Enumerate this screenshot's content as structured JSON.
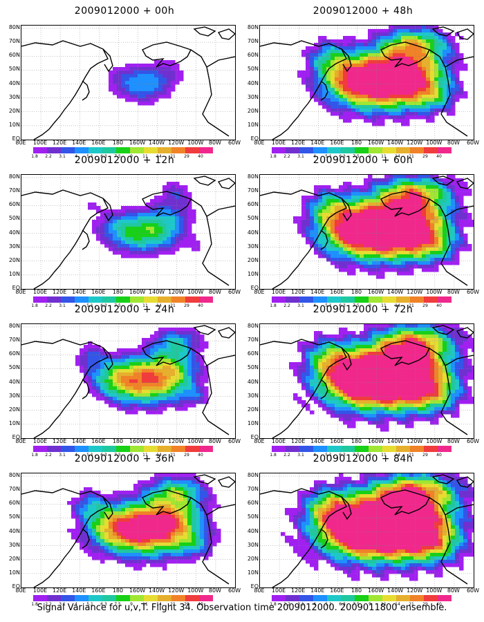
{
  "figure": {
    "footer": "Signal Variance for u,v,T. Flight 34. Observation time 2009012000. 2009011800 ensemble."
  },
  "lat_labels": [
    "80N",
    "70N",
    "60N",
    "50N",
    "40N",
    "30N",
    "20N",
    "10N",
    "EQ"
  ],
  "lon_labels": [
    "80E",
    "100E",
    "120E",
    "140E",
    "160E",
    "180",
    "160W",
    "140W",
    "120W",
    "100W",
    "80W",
    "60W"
  ],
  "colorbar": {
    "levels": [
      "1.8",
      "2.2",
      "3.1",
      "4",
      "5.1",
      "6.3",
      "7.5",
      "9",
      "11",
      "14",
      "21",
      "29",
      "40"
    ],
    "colors": [
      "#a020f0",
      "#7030d0",
      "#3355e8",
      "#1e90ff",
      "#1ec8c8",
      "#20c8a0",
      "#18d018",
      "#a0e632",
      "#e6dc32",
      "#e6af2d",
      "#f08228",
      "#f03c3c",
      "#f0288c"
    ]
  },
  "panels": [
    {
      "title": "2009012000 + 00h",
      "intensity": 0.15,
      "ext": 0.2
    },
    {
      "title": "2009012000 + 12h",
      "intensity": 0.3,
      "ext": 0.35
    },
    {
      "title": "2009012000 + 24h",
      "intensity": 0.5,
      "ext": 0.5
    },
    {
      "title": "2009012000 + 36h",
      "intensity": 0.62,
      "ext": 0.65
    },
    {
      "title": "2009012000 + 48h",
      "intensity": 0.72,
      "ext": 0.78
    },
    {
      "title": "2009012000 + 60h",
      "intensity": 0.78,
      "ext": 0.86
    },
    {
      "title": "2009012000 + 72h",
      "intensity": 0.82,
      "ext": 0.93
    },
    {
      "title": "2009012000 + 84h",
      "intensity": 0.86,
      "ext": 1.0
    }
  ]
}
